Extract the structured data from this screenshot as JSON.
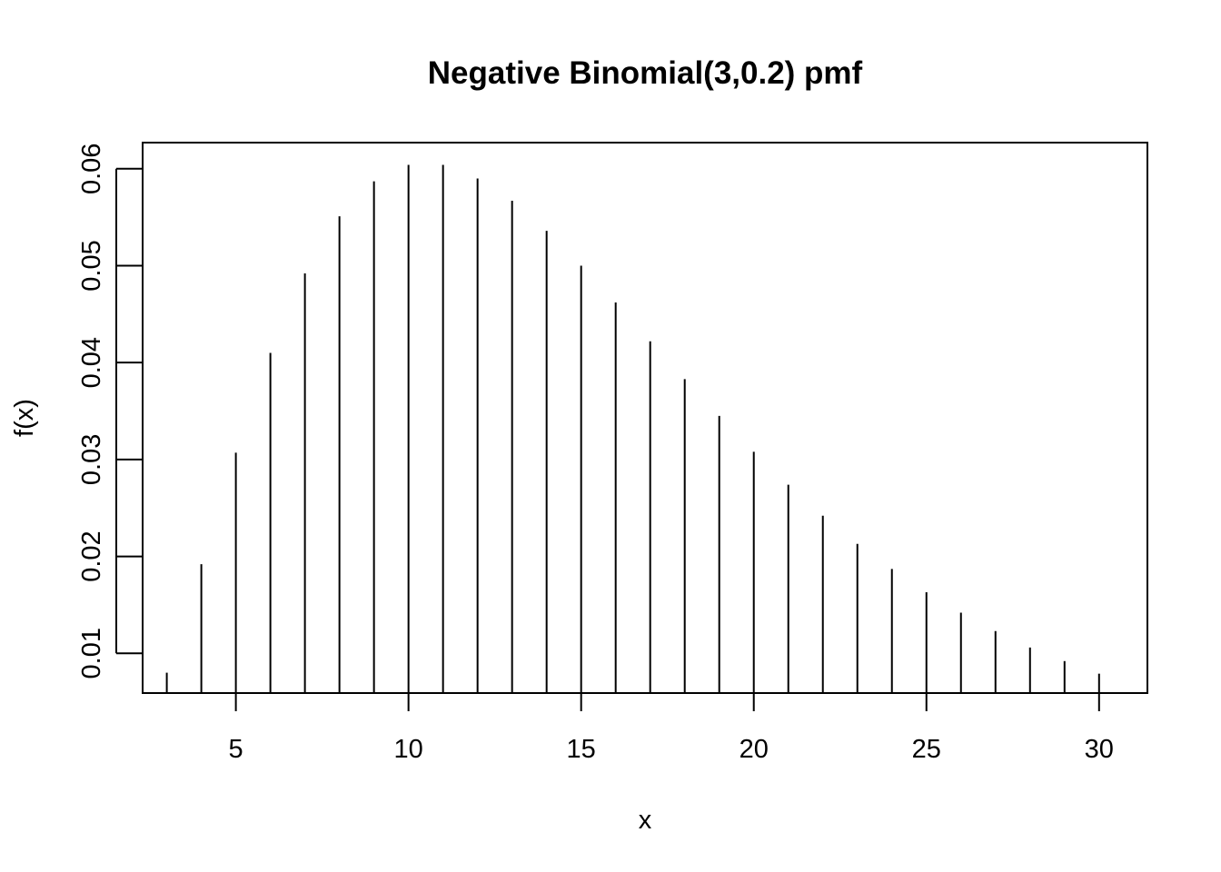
{
  "chart_data": {
    "type": "bar",
    "title": "Negative Binomial(3,0.2) pmf",
    "xlabel": "x",
    "ylabel": "f(x)",
    "x_ticks": [
      "5",
      "10",
      "15",
      "20",
      "25",
      "30"
    ],
    "y_ticks": [
      "0.01",
      "0.02",
      "0.03",
      "0.04",
      "0.05",
      "0.06"
    ],
    "xlim": [
      2.3,
      31.4
    ],
    "ylim": [
      0.0059,
      0.0627
    ],
    "grid": false,
    "x": [
      3,
      4,
      5,
      6,
      7,
      8,
      9,
      10,
      11,
      12,
      13,
      14,
      15,
      16,
      17,
      18,
      19,
      20,
      21,
      22,
      23,
      24,
      25,
      26,
      27,
      28,
      29,
      30
    ],
    "values": [
      0.008,
      0.0192,
      0.0307,
      0.041,
      0.0492,
      0.0551,
      0.0587,
      0.0604,
      0.0604,
      0.059,
      0.0567,
      0.0536,
      0.05,
      0.0462,
      0.0422,
      0.0383,
      0.0345,
      0.0308,
      0.0274,
      0.0242,
      0.0213,
      0.0187,
      0.0163,
      0.0142,
      0.0123,
      0.0106,
      0.0092,
      0.0079
    ]
  }
}
